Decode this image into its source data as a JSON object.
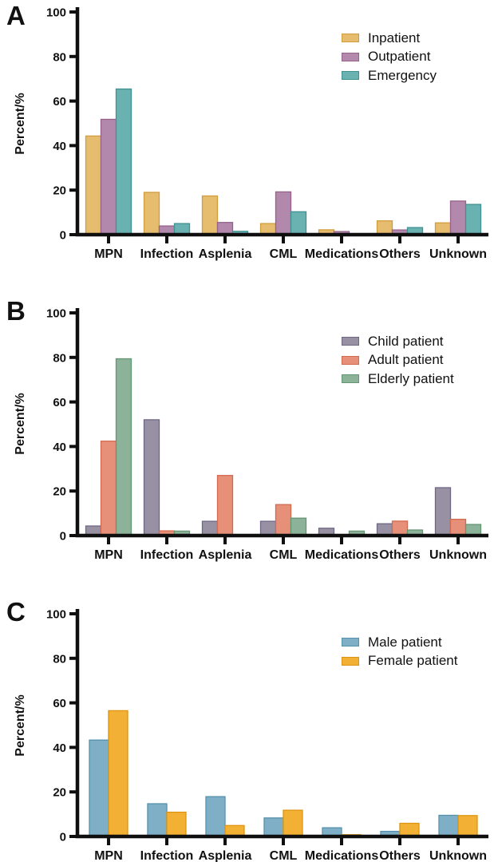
{
  "chart_data": [
    {
      "type": "bar",
      "panel_label": "A",
      "ylabel": "Percent/%",
      "categories": [
        "MPN",
        "Infection",
        "Asplenia",
        "CML",
        "Medications",
        "Others",
        "Unknown"
      ],
      "yticks": [
        0,
        20,
        40,
        60,
        80,
        100
      ],
      "ylim": [
        0,
        100
      ],
      "grid": false,
      "legend_position": "top-right",
      "series": [
        {
          "name": "Inpatient",
          "color": "#E6BC6E",
          "edge": "#D09E3C",
          "values": [
            44.3,
            19.0,
            17.4,
            5.0,
            2.2,
            6.2,
            5.3
          ]
        },
        {
          "name": "Outpatient",
          "color": "#B289AC",
          "edge": "#96628C",
          "values": [
            51.8,
            3.9,
            5.5,
            19.2,
            1.4,
            2.1,
            15.1
          ]
        },
        {
          "name": "Emergency",
          "color": "#6AB1B1",
          "edge": "#3F9192",
          "values": [
            65.4,
            5.0,
            1.5,
            10.3,
            0,
            3.2,
            13.6
          ]
        }
      ]
    },
    {
      "type": "bar",
      "panel_label": "B",
      "ylabel": "Percent/%",
      "categories": [
        "MPN",
        "Infection",
        "Asplenia",
        "CML",
        "Medications",
        "Others",
        "Unknown"
      ],
      "yticks": [
        0,
        20,
        40,
        60,
        80,
        100
      ],
      "ylim": [
        0,
        100
      ],
      "grid": false,
      "legend_position": "top-right",
      "series": [
        {
          "name": "Child patient",
          "color": "#9791A3",
          "edge": "#6F6884",
          "values": [
            4.3,
            52.0,
            6.4,
            6.4,
            3.3,
            5.3,
            21.5
          ]
        },
        {
          "name": "Adult patient",
          "color": "#E69079",
          "edge": "#D26A50",
          "values": [
            42.4,
            2.1,
            27.0,
            13.9,
            0,
            6.5,
            7.3
          ]
        },
        {
          "name": "Elderly patient",
          "color": "#8CB399",
          "edge": "#639672",
          "values": [
            79.4,
            2.0,
            0,
            7.8,
            2.0,
            2.5,
            5.0
          ]
        }
      ]
    },
    {
      "type": "bar",
      "panel_label": "C",
      "ylabel": "Percent/%",
      "categories": [
        "MPN",
        "Infection",
        "Asplenia",
        "CML",
        "Medications",
        "Others",
        "Unknown"
      ],
      "yticks": [
        0,
        20,
        40,
        60,
        80,
        100
      ],
      "ylim": [
        0,
        100
      ],
      "grid": false,
      "legend_position": "top-right",
      "series": [
        {
          "name": "Male patient",
          "color": "#7FAFC7",
          "edge": "#5590AC",
          "values": [
            43.3,
            14.7,
            17.9,
            8.3,
            3.9,
            2.3,
            9.5
          ]
        },
        {
          "name": "Female patient",
          "color": "#F2B034",
          "edge": "#DE9410",
          "values": [
            56.5,
            10.9,
            4.9,
            11.8,
            0.8,
            5.9,
            9.4
          ]
        }
      ]
    }
  ],
  "axis_color": "#0f0f0f"
}
